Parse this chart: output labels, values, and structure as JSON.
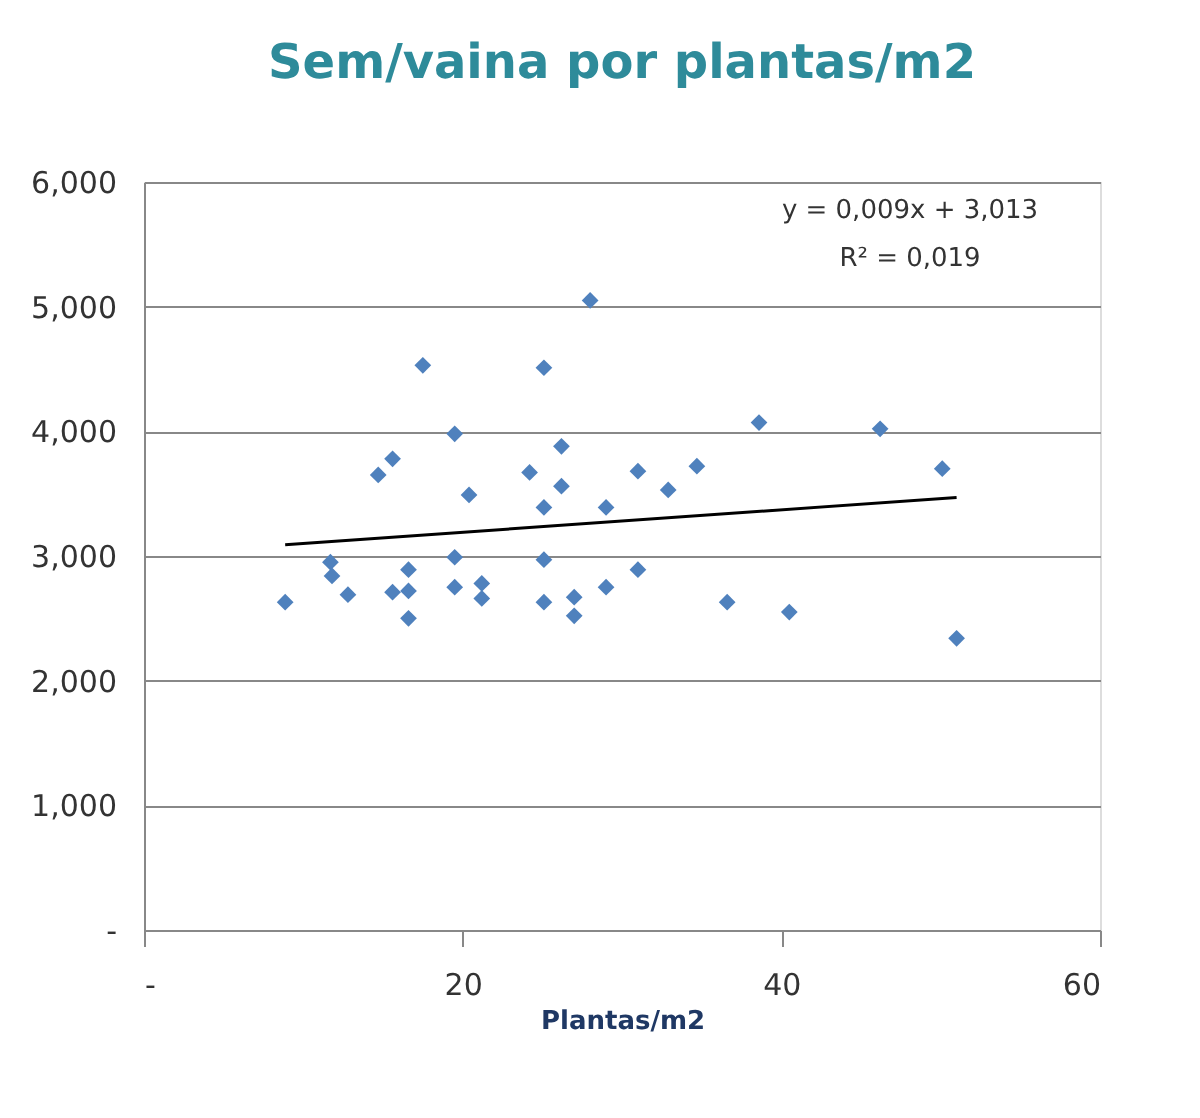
{
  "chart_data": {
    "type": "scatter",
    "title": "Sem/vaina por plantas/m2",
    "xlabel": "Plantas/m2",
    "x": [
      8.86,
      11.7,
      11.8,
      12.8,
      14.7,
      15.6,
      15.6,
      16.6,
      16.6,
      16.6,
      17.5,
      19.5,
      19.5,
      19.5,
      20.4,
      21.2,
      21.2,
      24.2,
      25.1,
      25.1,
      25.1,
      25.1,
      26.2,
      26.2,
      27.0,
      27.0,
      28.0,
      29.0,
      29.0,
      31.0,
      31.0,
      32.9,
      34.7,
      36.6,
      38.6,
      40.5,
      46.2,
      50.1,
      51.0
    ],
    "series": [
      {
        "color": "#4f81bd",
        "marker": "diamond",
        "values": [
          2.63,
          2.95,
          2.84,
          2.69,
          3.65,
          3.78,
          2.71,
          2.89,
          2.72,
          2.5,
          4.53,
          3.98,
          2.99,
          2.75,
          3.49,
          2.78,
          2.66,
          3.67,
          4.51,
          3.39,
          2.97,
          2.63,
          3.88,
          3.56,
          2.67,
          2.52,
          5.05,
          3.39,
          2.75,
          3.68,
          2.89,
          3.53,
          3.72,
          2.63,
          4.07,
          2.55,
          4.02,
          3.7,
          2.34
        ]
      },
      {
        "type": "line",
        "color": "#000000",
        "x": [
          8.86,
          51.0
        ],
        "values": [
          3.09,
          3.47
        ]
      }
    ],
    "annotations": [
      "y = 0,009x + 3,013",
      "R² = 0,019"
    ],
    "xlim": [
      0,
      60
    ],
    "xticks": [
      {
        "value": 0,
        "label": "-"
      },
      20,
      40,
      60
    ],
    "ylim": [
      0,
      6
    ],
    "yticks": [
      {
        "value": 0,
        "label": "-"
      },
      {
        "value": 1,
        "label": "1,000"
      },
      {
        "value": 2,
        "label": "2,000"
      },
      {
        "value": 3,
        "label": "3,000"
      },
      {
        "value": 4,
        "label": "4,000"
      },
      {
        "value": 5,
        "label": "5,000"
      },
      {
        "value": 6,
        "label": "6,000"
      }
    ],
    "grid": "y",
    "line_style": "solid"
  }
}
